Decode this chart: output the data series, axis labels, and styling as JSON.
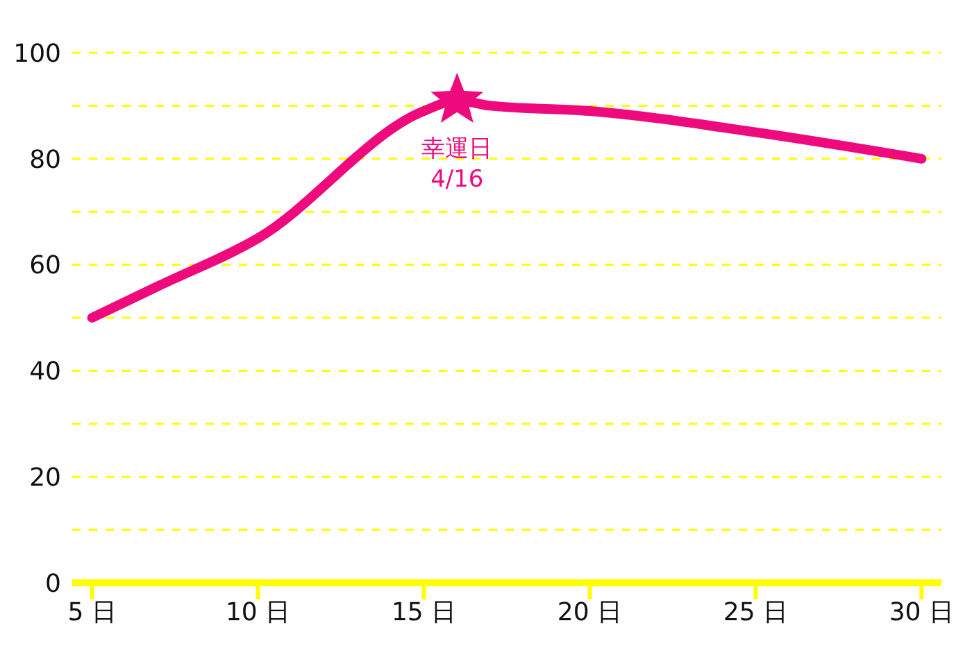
{
  "chart_data": {
    "type": "line",
    "x": [
      5,
      7,
      10,
      15,
      16,
      17,
      20,
      25,
      30
    ],
    "series": [
      {
        "color": "#ee0a7d",
        "values": [
          50,
          56,
          65,
          89,
          91,
          90,
          89,
          85,
          80
        ]
      }
    ],
    "xlim": [
      4.4,
      30.6
    ],
    "xticks": [
      {
        "value": 5,
        "label": "5 日"
      },
      {
        "value": 10,
        "label": "10 日"
      },
      {
        "value": 15,
        "label": "15 日"
      },
      {
        "value": 20,
        "label": "20 日"
      },
      {
        "value": 25,
        "label": "25 日"
      },
      {
        "value": 30,
        "label": "30 日"
      }
    ],
    "ylim": [
      0,
      100
    ],
    "yticks": [
      0,
      {
        "value": 10,
        "label": null
      },
      20,
      {
        "value": 30,
        "label": null
      },
      40,
      {
        "value": 50,
        "label": null
      },
      60,
      {
        "value": 70,
        "label": null
      },
      80,
      {
        "value": 90,
        "label": null
      },
      100
    ],
    "grid": "y",
    "marker": "none",
    "line_style": "solid",
    "annotations": [
      {
        "text": "幸運日\n4/16",
        "x": 16,
        "y": 91
      }
    ]
  }
}
